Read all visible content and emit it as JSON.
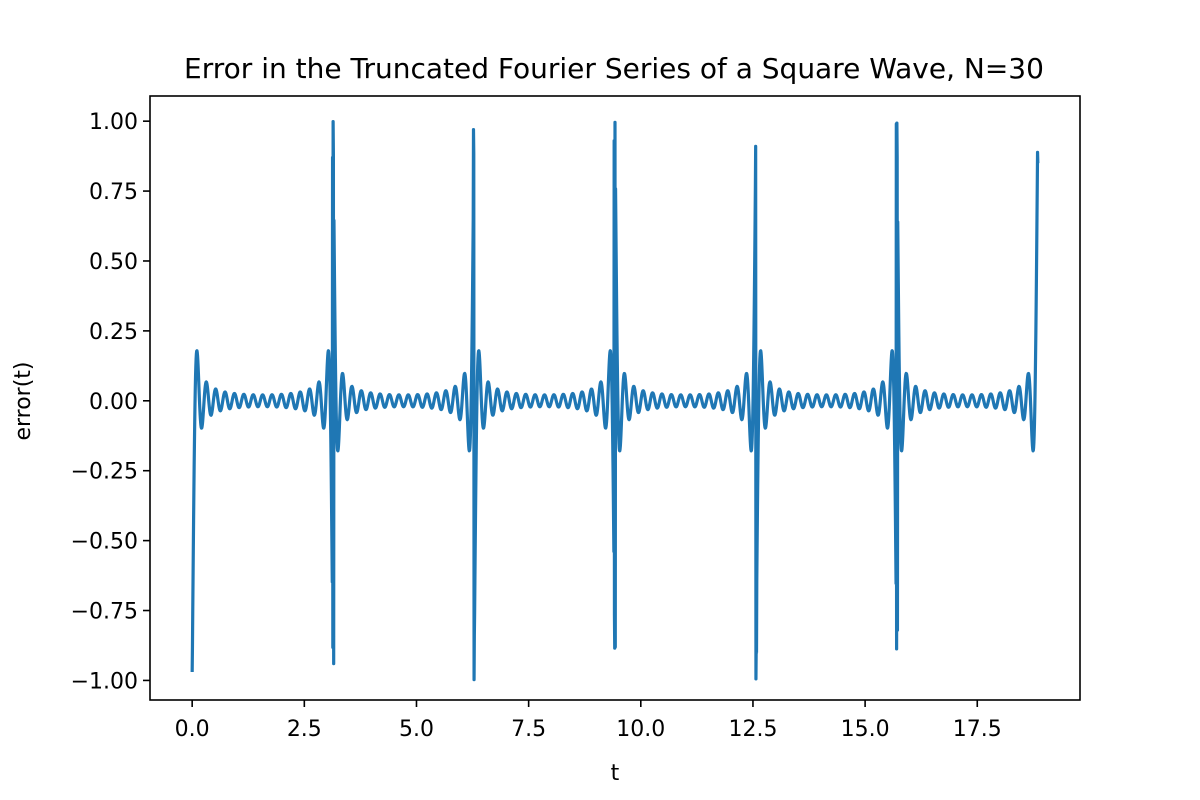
{
  "chart_data": {
    "type": "line",
    "title": "Error in the Truncated Fourier Series of a Square Wave, N=30",
    "xlabel": "t",
    "ylabel": "error(t)",
    "xlim": [
      -0.94,
      19.79
    ],
    "ylim": [
      -1.07,
      1.09
    ],
    "xticks": [
      0.0,
      2.5,
      5.0,
      7.5,
      10.0,
      12.5,
      15.0,
      17.5
    ],
    "xtick_labels": [
      "0.0",
      "2.5",
      "5.0",
      "7.5",
      "10.0",
      "12.5",
      "15.0",
      "17.5"
    ],
    "yticks": [
      1.0,
      0.75,
      0.5,
      0.25,
      0.0,
      -0.25,
      -0.5,
      -0.75,
      -1.0
    ],
    "ytick_labels": [
      "1.00",
      "0.75",
      "0.50",
      "0.25",
      "0.00",
      "−0.25",
      "−0.50",
      "−0.75",
      "−1.00"
    ],
    "grid": false,
    "series": [
      {
        "color": "#1f77b4",
        "N": 30,
        "t_range": [
          0.0,
          18.85
        ],
        "spikes": [
          {
            "t": 0.0,
            "up": null,
            "down": -0.97
          },
          {
            "t": 3.14,
            "up": 0.87,
            "down": -0.94
          },
          {
            "t": 6.28,
            "up": 0.97,
            "down": -0.84
          },
          {
            "t": 9.42,
            "up": 0.93,
            "down": -0.88
          },
          {
            "t": 12.57,
            "up": 0.91,
            "down": -0.9
          },
          {
            "t": 15.71,
            "up": 0.99,
            "down": -0.82
          },
          {
            "t": 18.85,
            "up": 0.85,
            "down": null
          }
        ]
      }
    ]
  }
}
